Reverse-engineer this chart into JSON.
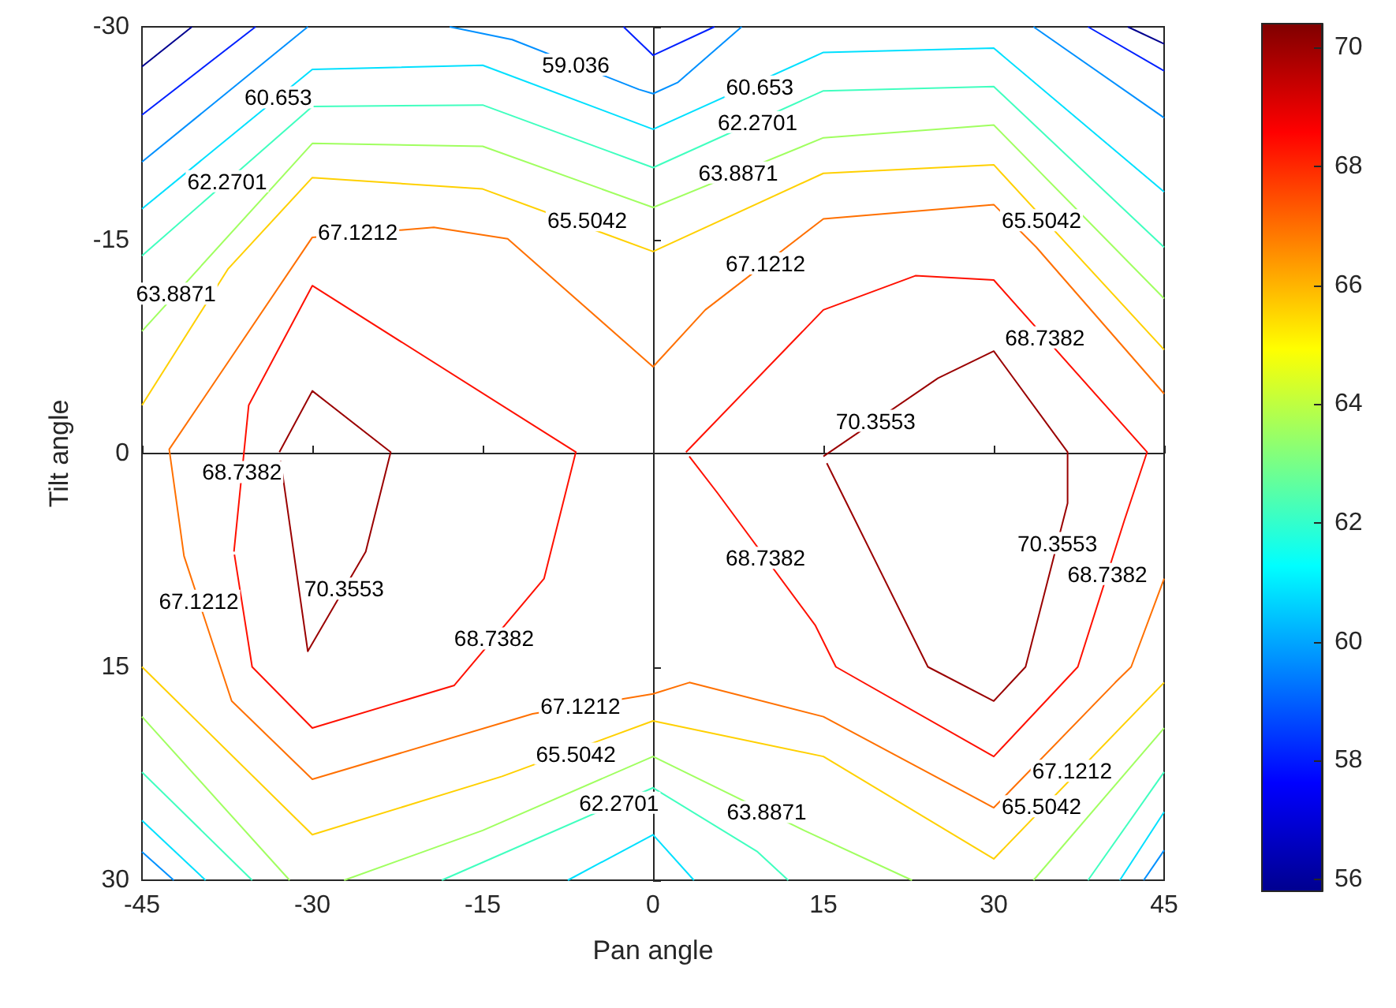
{
  "chart_data": {
    "type": "line",
    "xlabel": "Pan angle",
    "ylabel": "Tilt angle",
    "xlim": [
      -45,
      45
    ],
    "xticks": [
      -45,
      -30,
      -15,
      0,
      15,
      30,
      45
    ],
    "ylim": [
      30,
      -30
    ],
    "yticks": [
      -30,
      -15,
      0,
      15,
      30
    ],
    "marker": "none",
    "line_style": "solid",
    "clim": [
      55.8,
      70.4
    ],
    "cticks": [
      56,
      58,
      60,
      62,
      64,
      66,
      68,
      70
    ],
    "series": [
      {
        "color": "#00008f",
        "x": [
          -45,
          -40.6
        ],
        "values": [
          -27.2,
          -30
        ]
      },
      {
        "color": "#0020ff",
        "x": [
          -45,
          -35
        ],
        "values": [
          -23.8,
          -30
        ]
      },
      {
        "color": "#0090ff",
        "x": [
          -45,
          -30.4
        ],
        "values": [
          -20.5,
          -30
        ]
      },
      {
        "color": "#0090ff",
        "x": [
          -17.9,
          -12.4,
          -1.25,
          0,
          2.2,
          7.8
        ],
        "values": [
          -30,
          -29.1,
          -25.6,
          -25.3,
          -26.1,
          -30
        ]
      },
      {
        "color": "#0020ff",
        "x": [
          -2.6,
          0,
          5.4
        ],
        "values": [
          -30,
          -28,
          -30
        ]
      },
      {
        "color": "#00e0ff",
        "x": [
          -45,
          -30,
          -15,
          0,
          15,
          30,
          45
        ],
        "values": [
          -17.2,
          -27,
          -27.3,
          -22.8,
          -28.2,
          -28.5,
          -18.4
        ]
      },
      {
        "color": "#40ffbf",
        "x": [
          -45,
          -30,
          -15,
          0,
          15,
          30,
          45
        ],
        "values": [
          -13.9,
          -24.4,
          -24.5,
          -20.1,
          -25.5,
          -25.8,
          -14.5
        ]
      },
      {
        "color": "#a0ff60",
        "x": [
          -45,
          -30,
          -15,
          0,
          15,
          30,
          45
        ],
        "values": [
          -8.6,
          -21.8,
          -21.6,
          -17.3,
          -22.2,
          -23.1,
          -10.9
        ]
      },
      {
        "color": "#ffd000",
        "x": [
          -45,
          -37.4,
          -30,
          -15,
          0,
          15,
          30,
          45
        ],
        "values": [
          -3.4,
          -13,
          -19.4,
          -18.6,
          -14.2,
          -19.7,
          -20.3,
          -7.3
        ]
      },
      {
        "color": "#ff7000",
        "x": [
          45,
          33.75,
          30,
          15,
          4.6,
          0,
          -12.8,
          -19.3,
          -30,
          -42.6,
          -41.3,
          -37.1,
          -30,
          -10.6,
          0,
          3.2,
          15,
          30,
          40.7,
          42.1,
          45
        ],
        "values": [
          -4.2,
          -14.5,
          -17.5,
          -16.5,
          -10.1,
          -6.1,
          -15.1,
          -15.9,
          -15.2,
          -0.3,
          7.2,
          17.4,
          22.9,
          18.3,
          16.9,
          16.1,
          18.5,
          24.9,
          16.1,
          15,
          8.8
        ]
      },
      {
        "color": "#ff1000",
        "x": [
          -36.9,
          -35.6,
          -30,
          -6.8,
          -9.6,
          -17.5,
          -30,
          -35.3,
          -36.86
        ],
        "values": [
          6.9,
          -3.4,
          -11.8,
          -0.1,
          8.8,
          16.3,
          19.3,
          15,
          7.1
        ]
      },
      {
        "color": "#ff1000",
        "x": [
          2.9,
          15,
          23.1,
          30,
          43.5,
          41.5,
          37.4,
          30,
          16.1,
          14.3,
          5.7,
          3.19
        ],
        "values": [
          -0.1,
          -10.1,
          -12.5,
          -12.2,
          -0.1,
          4.7,
          15,
          21.3,
          15,
          12.1,
          2.8,
          0.2
        ]
      },
      {
        "color": "#9a0000",
        "x": [
          -32.9,
          -30,
          -23.1,
          -25.3,
          -30.4,
          -32.79
        ],
        "values": [
          -0.1,
          -4.4,
          -0.1,
          6.9,
          13.9,
          0.5
        ]
      },
      {
        "color": "#9a0000",
        "x": [
          15,
          25.1,
          30,
          36.5,
          36.5,
          32.8,
          30,
          24.2,
          15.3
        ],
        "values": [
          0.2,
          -5.3,
          -7.2,
          -0.1,
          3.5,
          15,
          17.4,
          15,
          0.68
        ]
      },
      {
        "color": "#ffd000",
        "x": [
          -45,
          -30,
          -13.3,
          0,
          15,
          30,
          45
        ],
        "values": [
          15,
          26.8,
          22.7,
          18.8,
          21.3,
          28.5,
          16.1
        ]
      },
      {
        "color": "#a0ff60",
        "x": [
          -45,
          -32
        ],
        "values": [
          18.5,
          30
        ]
      },
      {
        "color": "#a0ff60",
        "x": [
          -27.2,
          -15,
          0,
          13.3,
          22.8
        ],
        "values": [
          30,
          26.5,
          21.3,
          26.5,
          30
        ]
      },
      {
        "color": "#a0ff60",
        "x": [
          33.5,
          45
        ],
        "values": [
          30,
          19.3
        ]
      },
      {
        "color": "#40ffbf",
        "x": [
          -45,
          -35.3
        ],
        "values": [
          22.4,
          30
        ]
      },
      {
        "color": "#40ffbf",
        "x": [
          -18.6,
          0,
          9.2,
          11.9
        ],
        "values": [
          30,
          23.5,
          28,
          30
        ]
      },
      {
        "color": "#40ffbf",
        "x": [
          38.3,
          45
        ],
        "values": [
          30,
          22.4
        ]
      },
      {
        "color": "#00e0ff",
        "x": [
          -45,
          -39.4
        ],
        "values": [
          25.8,
          30
        ]
      },
      {
        "color": "#00e0ff",
        "x": [
          -7.5,
          0,
          3.6
        ],
        "values": [
          30,
          26.8,
          30
        ]
      },
      {
        "color": "#00e0ff",
        "x": [
          41.1,
          45
        ],
        "values": [
          30,
          25.2
        ]
      },
      {
        "color": "#0090ff",
        "x": [
          -45,
          -42.2
        ],
        "values": [
          28,
          30
        ]
      },
      {
        "color": "#0090ff",
        "x": [
          43.2,
          45
        ],
        "values": [
          30,
          27.9
        ]
      },
      {
        "color": "#0090ff",
        "x": [
          33.5,
          45
        ],
        "values": [
          -30,
          -23.6
        ]
      },
      {
        "color": "#0020ff",
        "x": [
          38.3,
          45
        ],
        "values": [
          -30,
          -26.9
        ]
      },
      {
        "color": "#00008f",
        "x": [
          41.8,
          45
        ],
        "values": [
          -30,
          -28.8
        ]
      }
    ],
    "annotations": [
      {
        "text": "59.036",
        "x": -6.8,
        "y": -27.34
      },
      {
        "text": "60.653",
        "x": -33,
        "y": -25.04
      },
      {
        "text": "60.653",
        "x": 9.4,
        "y": -25.8
      },
      {
        "text": "62.2701",
        "x": -37.5,
        "y": -19.15
      },
      {
        "text": "62.2701",
        "x": 9.2,
        "y": -23.3
      },
      {
        "text": "63.8871",
        "x": -42,
        "y": -11.24
      },
      {
        "text": "63.8871",
        "x": 7.5,
        "y": -19.75
      },
      {
        "text": "65.5042",
        "x": -5.8,
        "y": -16.4
      },
      {
        "text": "65.5042",
        "x": 34.2,
        "y": -16.4
      },
      {
        "text": "65.5042",
        "x": -6.8,
        "y": 21.1
      },
      {
        "text": "65.5042",
        "x": 34.2,
        "y": 24.8
      },
      {
        "text": "67.1212",
        "x": -26,
        "y": -15.6
      },
      {
        "text": "67.1212",
        "x": 9.9,
        "y": -13.36
      },
      {
        "text": "67.1212",
        "x": -40,
        "y": 10.36
      },
      {
        "text": "67.1212",
        "x": -6.4,
        "y": 17.75
      },
      {
        "text": "67.1212",
        "x": 36.9,
        "y": 22.3
      },
      {
        "text": "68.7382",
        "x": 34.5,
        "y": -8.17
      },
      {
        "text": "68.7382",
        "x": -36.2,
        "y": 1.3
      },
      {
        "text": "68.7382",
        "x": -14,
        "y": 13
      },
      {
        "text": "68.7382",
        "x": 9.9,
        "y": 7.34
      },
      {
        "text": "68.7382",
        "x": 40,
        "y": 8.47
      },
      {
        "text": "70.3553",
        "x": -27.2,
        "y": 9.5
      },
      {
        "text": "70.3553",
        "x": 19.6,
        "y": -2.3
      },
      {
        "text": "70.3553",
        "x": 35.6,
        "y": 6.3
      },
      {
        "text": "63.8871",
        "x": 10,
        "y": 25.2
      },
      {
        "text": "62.2701",
        "x": -3,
        "y": 24.55
      }
    ]
  }
}
